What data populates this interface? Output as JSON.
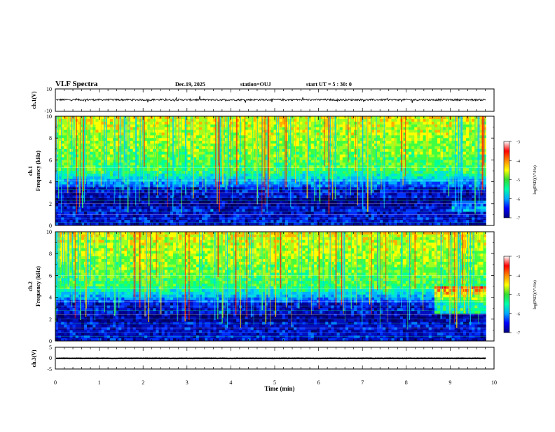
{
  "header": {
    "title": "VLF Spectra",
    "date": "Dec.19, 2025",
    "station": "station=OUJ",
    "start_ut": "start  UT =  5 : 30: 0"
  },
  "chart_data": [
    {
      "type": "line",
      "name": "ch1-waveform",
      "ylabel": "ch.1(V)",
      "ylim": [
        -10,
        10
      ],
      "y_tick_labels": [
        "10",
        "-10"
      ],
      "xlim": [
        0,
        10
      ],
      "baseline": 0.3,
      "amplitude": "noisy, about ±1 V with occasional spikes up to ±3 V"
    },
    {
      "type": "heatmap",
      "name": "ch1-spectrogram",
      "ylabel_top": "ch.1",
      "ylabel": "Frequency (kHz)",
      "ylim": [
        0,
        10
      ],
      "y_tick_labels": [
        "0",
        "2",
        "4",
        "6",
        "8",
        "10"
      ],
      "xlim": [
        0,
        10
      ],
      "colorbar": {
        "label": "log(PSD)(V²/Hz)",
        "range": [
          -7,
          -3
        ],
        "tick_labels": [
          "-3",
          "-4",
          "-5",
          "-6",
          "-7"
        ],
        "colors": [
          "#000080",
          "#0000ff",
          "#00aaff",
          "#00ffaa",
          "#33dd33",
          "#ffff00",
          "#ff8800",
          "#ff0000",
          "#ffffff"
        ]
      }
    },
    {
      "type": "heatmap",
      "name": "ch2-spectrogram",
      "ylabel_top": "ch.2",
      "ylabel": "Frequency (kHz)",
      "ylim": [
        0,
        10
      ],
      "y_tick_labels": [
        "0",
        "2",
        "4",
        "6",
        "8",
        "10"
      ],
      "xlim": [
        0,
        10
      ],
      "colorbar": {
        "label": "log(PSD)(V²/Hz)",
        "range": [
          -7,
          -3
        ],
        "tick_labels": [
          "-3",
          "-4",
          "-5",
          "-6",
          "-7"
        ],
        "colors": [
          "#000080",
          "#0000ff",
          "#00aaff",
          "#00ffaa",
          "#33dd33",
          "#ffff00",
          "#ff8800",
          "#ff0000",
          "#ffffff"
        ]
      }
    },
    {
      "type": "line",
      "name": "ch3-waveform",
      "ylabel": "ch.3(V)",
      "ylim": [
        -5,
        5
      ],
      "y_tick_labels": [
        "5",
        "0",
        "-5"
      ],
      "xlim": [
        0,
        10
      ],
      "baseline": -0.1,
      "amplitude": "nearly constant, very small ripple"
    }
  ],
  "xaxis": {
    "label": "Time (min)",
    "tick_labels": [
      "0",
      "1",
      "2",
      "3",
      "4",
      "5",
      "6",
      "7",
      "8",
      "9",
      "10"
    ]
  }
}
